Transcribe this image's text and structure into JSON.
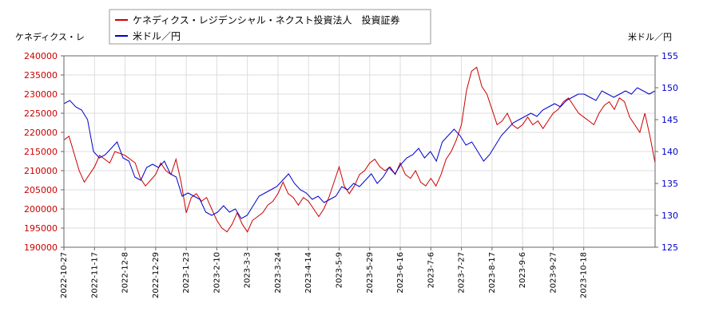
{
  "chart_data": {
    "type": "line",
    "left_axis_title": "ケネディクス・レ",
    "right_axis_title": "米ドル／円",
    "y_left": {
      "min": 190000,
      "max": 240000,
      "step": 5000,
      "ticks": [
        "190000",
        "195000",
        "200000",
        "205000",
        "210000",
        "215000",
        "220000",
        "225000",
        "230000",
        "235000",
        "240000"
      ]
    },
    "y_right": {
      "min": 125,
      "max": 155,
      "step": 5,
      "ticks": [
        "125",
        "130",
        "135",
        "140",
        "145",
        "150",
        "155"
      ]
    },
    "x_ticks": [
      "2022-10-27",
      "2022-11-17",
      "2022-12-8",
      "2022-12-29",
      "2023-1-23",
      "2023-2-10",
      "2023-3-3",
      "2023-3-24",
      "2023-4-14",
      "2023-5-9",
      "2023-5-29",
      "2023-6-16",
      "2023-7-6",
      "2023-7-27",
      "2023-8-17",
      "2023-9-6",
      "2023-9-27",
      "2023-10-18"
    ],
    "grid": true,
    "legend_position": "top",
    "series": [
      {
        "name": "ケネディクス・レジデンシャル・ネクスト投資法人　投資証券",
        "axis": "left",
        "color": "#cc0000",
        "points": [
          [
            0,
            218000
          ],
          [
            1,
            219000
          ],
          [
            3,
            210000
          ],
          [
            4,
            207000
          ],
          [
            6,
            211000
          ],
          [
            7,
            214000
          ],
          [
            9,
            212000
          ],
          [
            10,
            215000
          ],
          [
            12,
            214000
          ],
          [
            14,
            212000
          ],
          [
            15,
            208000
          ],
          [
            16,
            206000
          ],
          [
            18,
            209000
          ],
          [
            19,
            212000
          ],
          [
            20,
            210000
          ],
          [
            21,
            209000
          ],
          [
            22,
            213000
          ],
          [
            23,
            207000
          ],
          [
            24,
            199000
          ],
          [
            25,
            203000
          ],
          [
            26,
            204000
          ],
          [
            27,
            202000
          ],
          [
            28,
            203000
          ],
          [
            29,
            200000
          ],
          [
            30,
            197000
          ],
          [
            31,
            195000
          ],
          [
            32,
            194000
          ],
          [
            33,
            196000
          ],
          [
            34,
            199000
          ],
          [
            35,
            196000
          ],
          [
            36,
            194000
          ],
          [
            37,
            197000
          ],
          [
            38,
            198000
          ],
          [
            39,
            199000
          ],
          [
            40,
            201000
          ],
          [
            41,
            202000
          ],
          [
            42,
            204000
          ],
          [
            43,
            207000
          ],
          [
            44,
            204000
          ],
          [
            45,
            203000
          ],
          [
            46,
            201000
          ],
          [
            47,
            203000
          ],
          [
            48,
            202000
          ],
          [
            49,
            200000
          ],
          [
            50,
            198000
          ],
          [
            51,
            200000
          ],
          [
            52,
            203000
          ],
          [
            53,
            207000
          ],
          [
            54,
            211000
          ],
          [
            55,
            206000
          ],
          [
            56,
            204000
          ],
          [
            57,
            206000
          ],
          [
            58,
            209000
          ],
          [
            59,
            210000
          ],
          [
            60,
            212000
          ],
          [
            61,
            213000
          ],
          [
            62,
            211000
          ],
          [
            63,
            210000
          ],
          [
            64,
            211000
          ],
          [
            65,
            209000
          ],
          [
            66,
            212000
          ],
          [
            67,
            209000
          ],
          [
            68,
            208000
          ],
          [
            69,
            210000
          ],
          [
            70,
            207000
          ],
          [
            71,
            206000
          ],
          [
            72,
            208000
          ],
          [
            73,
            206000
          ],
          [
            74,
            209000
          ],
          [
            75,
            213000
          ],
          [
            76,
            215000
          ],
          [
            77,
            218000
          ],
          [
            78,
            222000
          ],
          [
            79,
            231000
          ],
          [
            80,
            236000
          ],
          [
            81,
            237000
          ],
          [
            82,
            232000
          ],
          [
            83,
            230000
          ],
          [
            84,
            226000
          ],
          [
            85,
            222000
          ],
          [
            86,
            223000
          ],
          [
            87,
            225000
          ],
          [
            88,
            222000
          ],
          [
            89,
            221000
          ],
          [
            90,
            222000
          ],
          [
            91,
            224000
          ],
          [
            92,
            222000
          ],
          [
            93,
            223000
          ],
          [
            94,
            221000
          ],
          [
            95,
            223000
          ],
          [
            96,
            225000
          ],
          [
            97,
            226000
          ],
          [
            98,
            228000
          ],
          [
            99,
            229000
          ],
          [
            100,
            227000
          ],
          [
            101,
            225000
          ],
          [
            102,
            224000
          ],
          [
            103,
            223000
          ],
          [
            104,
            222000
          ],
          [
            105,
            225000
          ],
          [
            106,
            227000
          ],
          [
            107,
            228000
          ],
          [
            108,
            226000
          ],
          [
            109,
            229000
          ],
          [
            110,
            228000
          ],
          [
            111,
            224000
          ],
          [
            112,
            222000
          ],
          [
            113,
            220000
          ],
          [
            114,
            225000
          ],
          [
            115,
            219000
          ],
          [
            116,
            212000
          ]
        ]
      },
      {
        "name": "米ドル／円",
        "axis": "right",
        "color": "#0000cc",
        "points": [
          [
            0,
            147.5
          ],
          [
            1,
            148.0
          ],
          [
            2,
            147.0
          ],
          [
            3,
            146.5
          ],
          [
            4,
            145.0
          ],
          [
            5,
            140.0
          ],
          [
            6,
            139.0
          ],
          [
            7,
            139.5
          ],
          [
            8,
            140.5
          ],
          [
            9,
            141.5
          ],
          [
            10,
            139.0
          ],
          [
            11,
            138.5
          ],
          [
            12,
            136.0
          ],
          [
            13,
            135.5
          ],
          [
            14,
            137.5
          ],
          [
            15,
            138.0
          ],
          [
            16,
            137.5
          ],
          [
            17,
            138.5
          ],
          [
            18,
            136.5
          ],
          [
            19,
            136.0
          ],
          [
            20,
            133.0
          ],
          [
            21,
            133.5
          ],
          [
            22,
            133.0
          ],
          [
            23,
            132.5
          ],
          [
            24,
            130.5
          ],
          [
            25,
            130.0
          ],
          [
            26,
            130.5
          ],
          [
            27,
            131.5
          ],
          [
            28,
            130.5
          ],
          [
            29,
            131.0
          ],
          [
            30,
            129.5
          ],
          [
            31,
            130.0
          ],
          [
            32,
            131.5
          ],
          [
            33,
            133.0
          ],
          [
            34,
            133.5
          ],
          [
            35,
            134.0
          ],
          [
            36,
            134.5
          ],
          [
            37,
            135.5
          ],
          [
            38,
            136.5
          ],
          [
            39,
            135.0
          ],
          [
            40,
            134.0
          ],
          [
            41,
            133.5
          ],
          [
            42,
            132.5
          ],
          [
            43,
            133.0
          ],
          [
            44,
            132.0
          ],
          [
            45,
            132.5
          ],
          [
            46,
            133.0
          ],
          [
            47,
            134.5
          ],
          [
            48,
            134.0
          ],
          [
            49,
            135.0
          ],
          [
            50,
            134.5
          ],
          [
            51,
            135.5
          ],
          [
            52,
            136.5
          ],
          [
            53,
            135.0
          ],
          [
            54,
            136.0
          ],
          [
            55,
            137.5
          ],
          [
            56,
            136.5
          ],
          [
            57,
            138.0
          ],
          [
            58,
            139.0
          ],
          [
            59,
            139.5
          ],
          [
            60,
            140.5
          ],
          [
            61,
            139.0
          ],
          [
            62,
            140.0
          ],
          [
            63,
            138.5
          ],
          [
            64,
            141.5
          ],
          [
            65,
            142.5
          ],
          [
            66,
            143.5
          ],
          [
            67,
            142.5
          ],
          [
            68,
            141.0
          ],
          [
            69,
            141.5
          ],
          [
            70,
            140.0
          ],
          [
            71,
            138.5
          ],
          [
            72,
            139.5
          ],
          [
            73,
            141.0
          ],
          [
            74,
            142.5
          ],
          [
            75,
            143.5
          ],
          [
            76,
            144.5
          ],
          [
            77,
            145.0
          ],
          [
            78,
            145.5
          ],
          [
            79,
            146.0
          ],
          [
            80,
            145.5
          ],
          [
            81,
            146.5
          ],
          [
            82,
            147.0
          ],
          [
            83,
            147.5
          ],
          [
            84,
            147.0
          ],
          [
            85,
            148.0
          ],
          [
            86,
            148.5
          ],
          [
            87,
            149.0
          ],
          [
            88,
            149.0
          ],
          [
            89,
            148.5
          ],
          [
            90,
            148.0
          ],
          [
            91,
            149.5
          ],
          [
            92,
            149.0
          ],
          [
            93,
            148.5
          ],
          [
            94,
            149.0
          ],
          [
            95,
            149.5
          ],
          [
            96,
            149.0
          ],
          [
            97,
            150.0
          ],
          [
            98,
            149.5
          ],
          [
            99,
            149.0
          ],
          [
            100,
            149.5
          ]
        ]
      }
    ]
  }
}
